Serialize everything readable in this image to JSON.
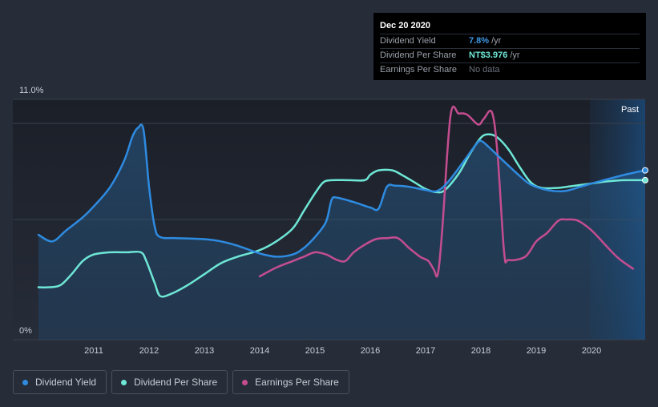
{
  "tooltip": {
    "date": "Dec 20 2020",
    "rows": [
      {
        "label": "Dividend Yield",
        "value": "7.8%",
        "unit": "/yr",
        "color": "#3d9be9"
      },
      {
        "label": "Dividend Per Share",
        "value": "NT$3.976",
        "unit": "/yr",
        "color": "#6ee7d6"
      },
      {
        "label": "Earnings Per Share",
        "value": "No data"
      }
    ]
  },
  "legend": [
    {
      "label": "Dividend Yield",
      "color": "#2e8be0"
    },
    {
      "label": "Dividend Per Share",
      "color": "#6ee7d6"
    },
    {
      "label": "Earnings Per Share",
      "color": "#c44d90"
    }
  ],
  "chart_data": {
    "type": "line",
    "x_range": [
      2010.0,
      2020.97
    ],
    "y_range": [
      0,
      11.0
    ],
    "y_tick_labels": [
      "11.0%",
      "0%"
    ],
    "x_ticks": [
      2011,
      2012,
      2013,
      2014,
      2015,
      2016,
      2017,
      2018,
      2019,
      2020
    ],
    "past_label": "Past",
    "series": [
      {
        "name": "Dividend Yield",
        "color": "#2e8be0",
        "area": true,
        "points": [
          [
            2010.0,
            4.8
          ],
          [
            2010.25,
            4.5
          ],
          [
            2010.5,
            5.0
          ],
          [
            2010.8,
            5.6
          ],
          [
            2011.0,
            6.1
          ],
          [
            2011.3,
            7.0
          ],
          [
            2011.55,
            8.2
          ],
          [
            2011.7,
            9.3
          ],
          [
            2011.8,
            9.7
          ],
          [
            2011.9,
            9.6
          ],
          [
            2012.0,
            7.0
          ],
          [
            2012.1,
            5.2
          ],
          [
            2012.2,
            4.7
          ],
          [
            2012.5,
            4.65
          ],
          [
            2013.0,
            4.6
          ],
          [
            2013.3,
            4.5
          ],
          [
            2013.6,
            4.3
          ],
          [
            2014.0,
            3.95
          ],
          [
            2014.3,
            3.8
          ],
          [
            2014.6,
            3.9
          ],
          [
            2014.8,
            4.2
          ],
          [
            2015.0,
            4.7
          ],
          [
            2015.2,
            5.4
          ],
          [
            2015.3,
            6.4
          ],
          [
            2015.4,
            6.5
          ],
          [
            2015.7,
            6.3
          ],
          [
            2016.0,
            6.05
          ],
          [
            2016.15,
            6.0
          ],
          [
            2016.3,
            7.0
          ],
          [
            2016.45,
            7.05
          ],
          [
            2016.7,
            7.0
          ],
          [
            2017.0,
            6.85
          ],
          [
            2017.2,
            6.8
          ],
          [
            2017.4,
            7.2
          ],
          [
            2017.7,
            8.2
          ],
          [
            2017.9,
            8.9
          ],
          [
            2018.0,
            9.1
          ],
          [
            2018.15,
            8.8
          ],
          [
            2018.4,
            8.2
          ],
          [
            2018.7,
            7.5
          ],
          [
            2018.9,
            7.1
          ],
          [
            2019.2,
            6.85
          ],
          [
            2019.5,
            6.8
          ],
          [
            2019.8,
            7.0
          ],
          [
            2020.0,
            7.15
          ],
          [
            2020.3,
            7.35
          ],
          [
            2020.6,
            7.55
          ],
          [
            2020.97,
            7.75
          ]
        ]
      },
      {
        "name": "Dividend Per Share",
        "color": "#6ee7d6",
        "area": false,
        "points": [
          [
            2010.0,
            2.4
          ],
          [
            2010.2,
            2.4
          ],
          [
            2010.4,
            2.5
          ],
          [
            2010.6,
            3.0
          ],
          [
            2010.8,
            3.6
          ],
          [
            2011.0,
            3.9
          ],
          [
            2011.3,
            4.0
          ],
          [
            2011.6,
            4.0
          ],
          [
            2011.85,
            4.0
          ],
          [
            2011.95,
            3.6
          ],
          [
            2012.1,
            2.6
          ],
          [
            2012.2,
            2.0
          ],
          [
            2012.4,
            2.1
          ],
          [
            2012.7,
            2.5
          ],
          [
            2013.0,
            3.0
          ],
          [
            2013.3,
            3.5
          ],
          [
            2013.6,
            3.8
          ],
          [
            2014.0,
            4.1
          ],
          [
            2014.3,
            4.5
          ],
          [
            2014.6,
            5.1
          ],
          [
            2014.8,
            5.9
          ],
          [
            2015.0,
            6.7
          ],
          [
            2015.15,
            7.2
          ],
          [
            2015.3,
            7.3
          ],
          [
            2015.6,
            7.3
          ],
          [
            2015.9,
            7.3
          ],
          [
            2016.0,
            7.55
          ],
          [
            2016.15,
            7.75
          ],
          [
            2016.4,
            7.75
          ],
          [
            2016.6,
            7.5
          ],
          [
            2016.8,
            7.2
          ],
          [
            2017.0,
            6.9
          ],
          [
            2017.2,
            6.75
          ],
          [
            2017.35,
            6.85
          ],
          [
            2017.6,
            7.6
          ],
          [
            2017.8,
            8.5
          ],
          [
            2018.0,
            9.25
          ],
          [
            2018.15,
            9.4
          ],
          [
            2018.3,
            9.25
          ],
          [
            2018.5,
            8.7
          ],
          [
            2018.7,
            7.9
          ],
          [
            2018.9,
            7.2
          ],
          [
            2019.1,
            6.95
          ],
          [
            2019.4,
            6.95
          ],
          [
            2019.7,
            7.05
          ],
          [
            2020.0,
            7.15
          ],
          [
            2020.3,
            7.25
          ],
          [
            2020.6,
            7.3
          ],
          [
            2020.97,
            7.3
          ]
        ]
      },
      {
        "name": "Earnings Per Share",
        "color": "#c44d90",
        "area": false,
        "points": [
          [
            2014.0,
            2.9
          ],
          [
            2014.3,
            3.3
          ],
          [
            2014.6,
            3.6
          ],
          [
            2014.8,
            3.8
          ],
          [
            2015.0,
            4.0
          ],
          [
            2015.2,
            3.9
          ],
          [
            2015.4,
            3.65
          ],
          [
            2015.55,
            3.6
          ],
          [
            2015.7,
            4.0
          ],
          [
            2015.9,
            4.35
          ],
          [
            2016.1,
            4.6
          ],
          [
            2016.3,
            4.65
          ],
          [
            2016.5,
            4.65
          ],
          [
            2016.7,
            4.2
          ],
          [
            2016.9,
            3.8
          ],
          [
            2017.05,
            3.6
          ],
          [
            2017.15,
            3.2
          ],
          [
            2017.22,
            3.0
          ],
          [
            2017.3,
            5.0
          ],
          [
            2017.45,
            10.25
          ],
          [
            2017.6,
            10.35
          ],
          [
            2017.75,
            10.3
          ],
          [
            2017.95,
            9.85
          ],
          [
            2018.05,
            10.1
          ],
          [
            2018.2,
            10.4
          ],
          [
            2018.3,
            8.5
          ],
          [
            2018.42,
            4.0
          ],
          [
            2018.5,
            3.65
          ],
          [
            2018.8,
            3.8
          ],
          [
            2019.0,
            4.5
          ],
          [
            2019.2,
            4.9
          ],
          [
            2019.4,
            5.45
          ],
          [
            2019.55,
            5.5
          ],
          [
            2019.75,
            5.45
          ],
          [
            2020.0,
            5.0
          ],
          [
            2020.3,
            4.2
          ],
          [
            2020.5,
            3.7
          ],
          [
            2020.75,
            3.25
          ]
        ]
      }
    ]
  }
}
